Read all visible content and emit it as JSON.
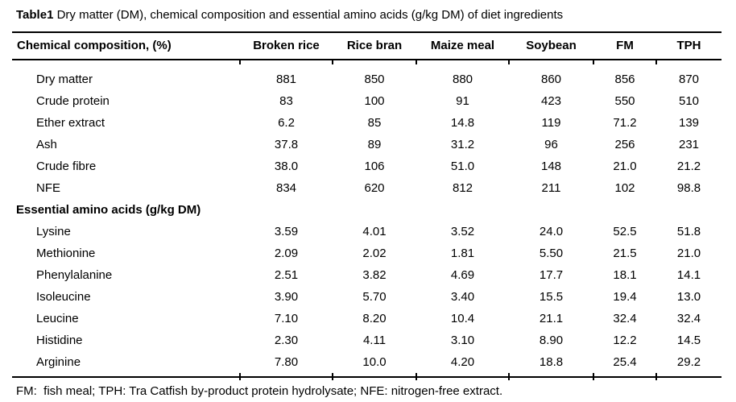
{
  "title": {
    "label": "Table1",
    "caption": "Dry matter (DM), chemical composition and essential amino acids (g/kg DM) of diet ingredients"
  },
  "table": {
    "columns": [
      "Chemical composition, (%)",
      "Broken rice",
      "Rice bran",
      "Maize meal",
      "Soybean",
      "FM",
      "TPH"
    ],
    "rows": [
      {
        "label": "Dry matter",
        "section": false,
        "values": [
          "881",
          "850",
          "880",
          "860",
          "856",
          "870"
        ]
      },
      {
        "label": "Crude protein",
        "section": false,
        "values": [
          "83",
          "100",
          "91",
          "423",
          "550",
          "510"
        ]
      },
      {
        "label": "Ether extract",
        "section": false,
        "values": [
          "6.2",
          "85",
          "14.8",
          "119",
          "71.2",
          "139"
        ]
      },
      {
        "label": "Ash",
        "section": false,
        "values": [
          "37.8",
          "89",
          "31.2",
          "96",
          "256",
          "231"
        ]
      },
      {
        "label": "Crude fibre",
        "section": false,
        "values": [
          "38.0",
          "106",
          "51.0",
          "148",
          "21.0",
          "21.2"
        ]
      },
      {
        "label": "NFE",
        "section": false,
        "values": [
          "834",
          "620",
          "812",
          "211",
          "102",
          "98.8"
        ]
      },
      {
        "label": "Essential amino acids (g/kg DM)",
        "section": true,
        "values": []
      },
      {
        "label": "Lysine",
        "section": false,
        "values": [
          "3.59",
          "4.01",
          "3.52",
          "24.0",
          "52.5",
          "51.8"
        ]
      },
      {
        "label": "Methionine",
        "section": false,
        "values": [
          "2.09",
          "2.02",
          "1.81",
          "5.50",
          "21.5",
          "21.0"
        ]
      },
      {
        "label": "Phenylalanine",
        "section": false,
        "values": [
          "2.51",
          "3.82",
          "4.69",
          "17.7",
          "18.1",
          "14.1"
        ]
      },
      {
        "label": "Isoleucine",
        "section": false,
        "values": [
          "3.90",
          "5.70",
          "3.40",
          "15.5",
          "19.4",
          "13.0"
        ]
      },
      {
        "label": "Leucine",
        "section": false,
        "values": [
          "7.10",
          "8.20",
          "10.4",
          "21.1",
          "32.4",
          "32.4"
        ]
      },
      {
        "label": "Histidine",
        "section": false,
        "values": [
          "2.30",
          "4.11",
          "3.10",
          "8.90",
          "12.2",
          "14.5"
        ]
      },
      {
        "label": "Arginine",
        "section": false,
        "values": [
          "7.80",
          "10.0",
          "4.20",
          "18.8",
          "25.4",
          "29.2"
        ]
      }
    ]
  },
  "footnote": "FM:  fish meal; TPH: Tra Catfish by-product protein hydrolysate; NFE: nitrogen-free extract.",
  "colors": {
    "text": "#000000",
    "rule": "#000000",
    "background": "#ffffff"
  }
}
